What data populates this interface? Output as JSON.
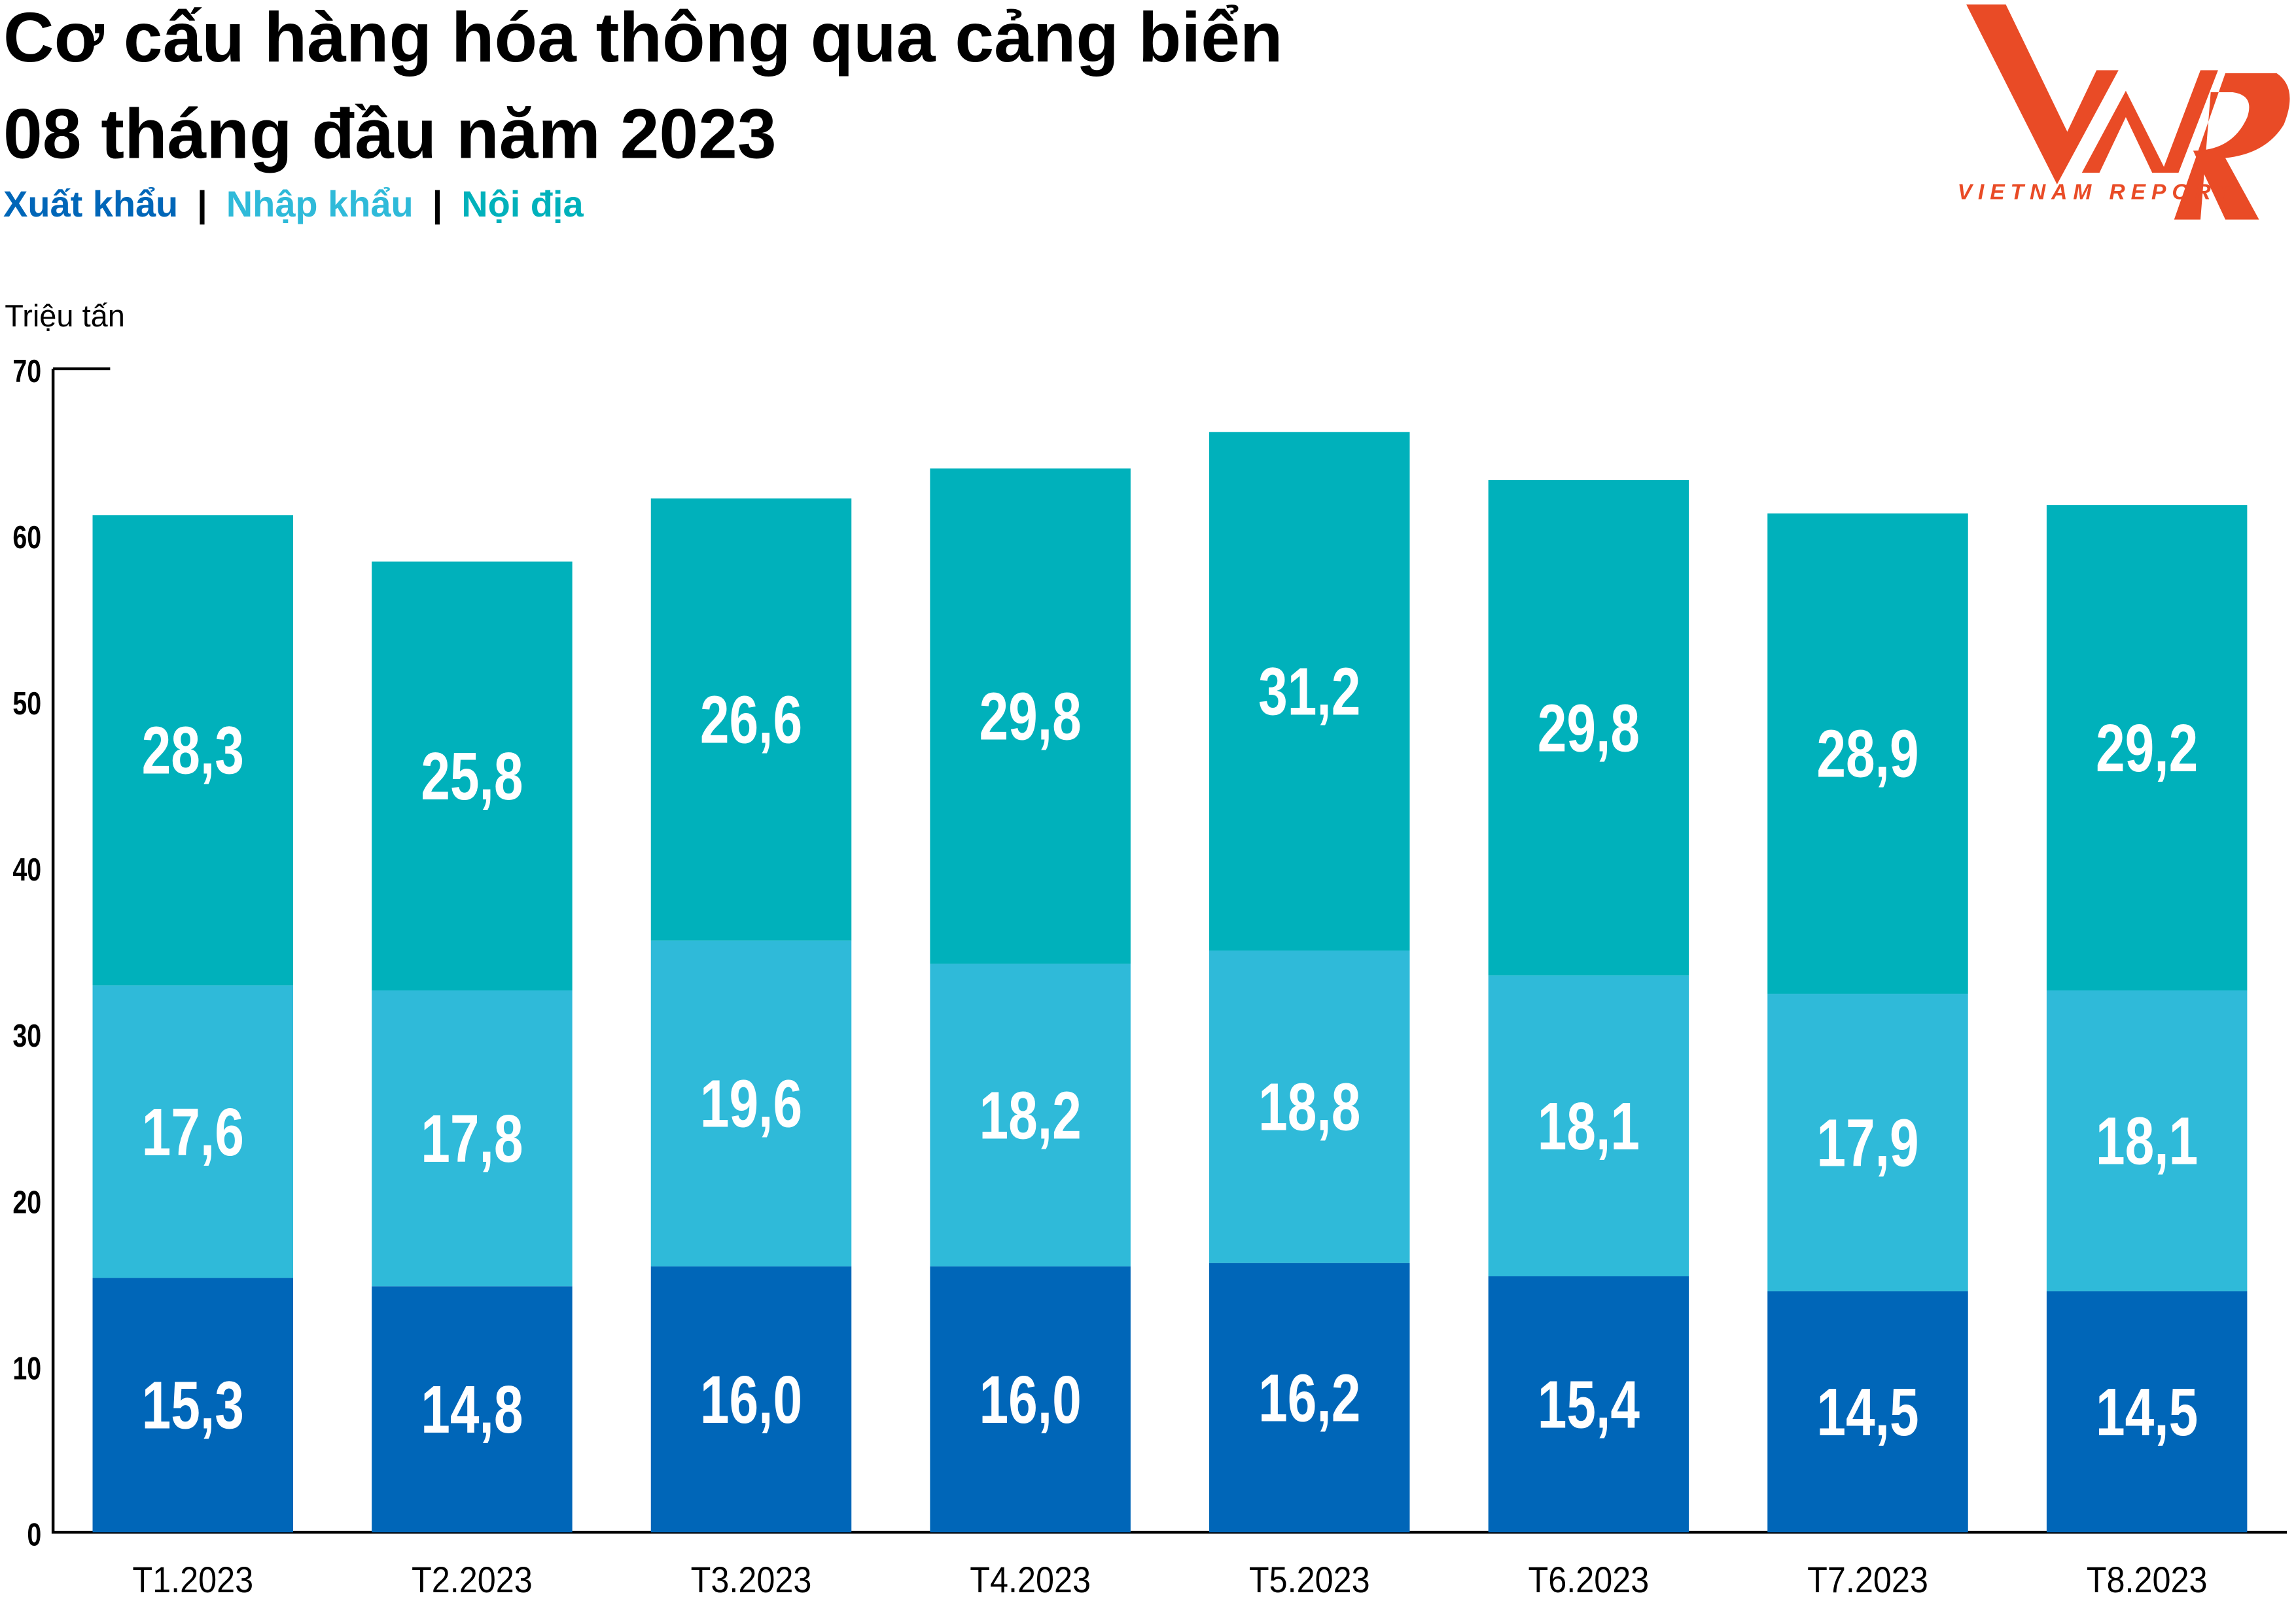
{
  "title_line1": "Cơ cấu hàng hóa thông qua cảng biển",
  "title_line2": "08 tháng đầu năm 2023",
  "legend": [
    {
      "label": "Xuất khẩu",
      "color": "#0066b8"
    },
    {
      "label": "Nhập khẩu",
      "color": "#2fbad9"
    },
    {
      "label": "Nội địa",
      "color": "#00b1bb"
    }
  ],
  "legend_separator": "|",
  "logo": {
    "mark": "VNR",
    "text": "VIETNAM REPORT",
    "color": "#e94b26"
  },
  "chart_data": {
    "type": "bar",
    "stacked": true,
    "title": "Cơ cấu hàng hóa thông qua cảng biển 08 tháng đầu năm 2023",
    "ylabel": "Triệu tấn",
    "xlabel": "",
    "ylim": [
      0,
      70
    ],
    "yticks": [
      "0",
      "10",
      "20",
      "30",
      "40",
      "50",
      "60",
      "70"
    ],
    "categories": [
      "T1.2023",
      "T2.2023",
      "T3.2023",
      "T4.2023",
      "T5.2023",
      "T6.2023",
      "T7.2023",
      "T8.2023"
    ],
    "series": [
      {
        "name": "Xuất khẩu",
        "color": "#0066b8",
        "values": [
          15.3,
          14.8,
          16.0,
          16.0,
          16.2,
          15.4,
          14.5,
          14.5
        ],
        "labels": [
          "15,3",
          "14,8",
          "16,0",
          "16,0",
          "16,2",
          "15,4",
          "14,5",
          "14,5"
        ]
      },
      {
        "name": "Nhập khẩu",
        "color": "#2fbad9",
        "values": [
          17.6,
          17.8,
          19.6,
          18.2,
          18.8,
          18.1,
          17.9,
          18.1
        ],
        "labels": [
          "17,6",
          "17,8",
          "19,6",
          "18,2",
          "18,8",
          "18,1",
          "17,9",
          "18,1"
        ]
      },
      {
        "name": "Nội địa",
        "color": "#00b1bb",
        "values": [
          28.3,
          25.8,
          26.6,
          29.8,
          31.2,
          29.8,
          28.9,
          29.2
        ],
        "labels": [
          "28,3",
          "25,8",
          "26,6",
          "29,8",
          "31,2",
          "29,8",
          "28,9",
          "29,2"
        ]
      }
    ],
    "grid": false,
    "legend_position": "top-left"
  }
}
